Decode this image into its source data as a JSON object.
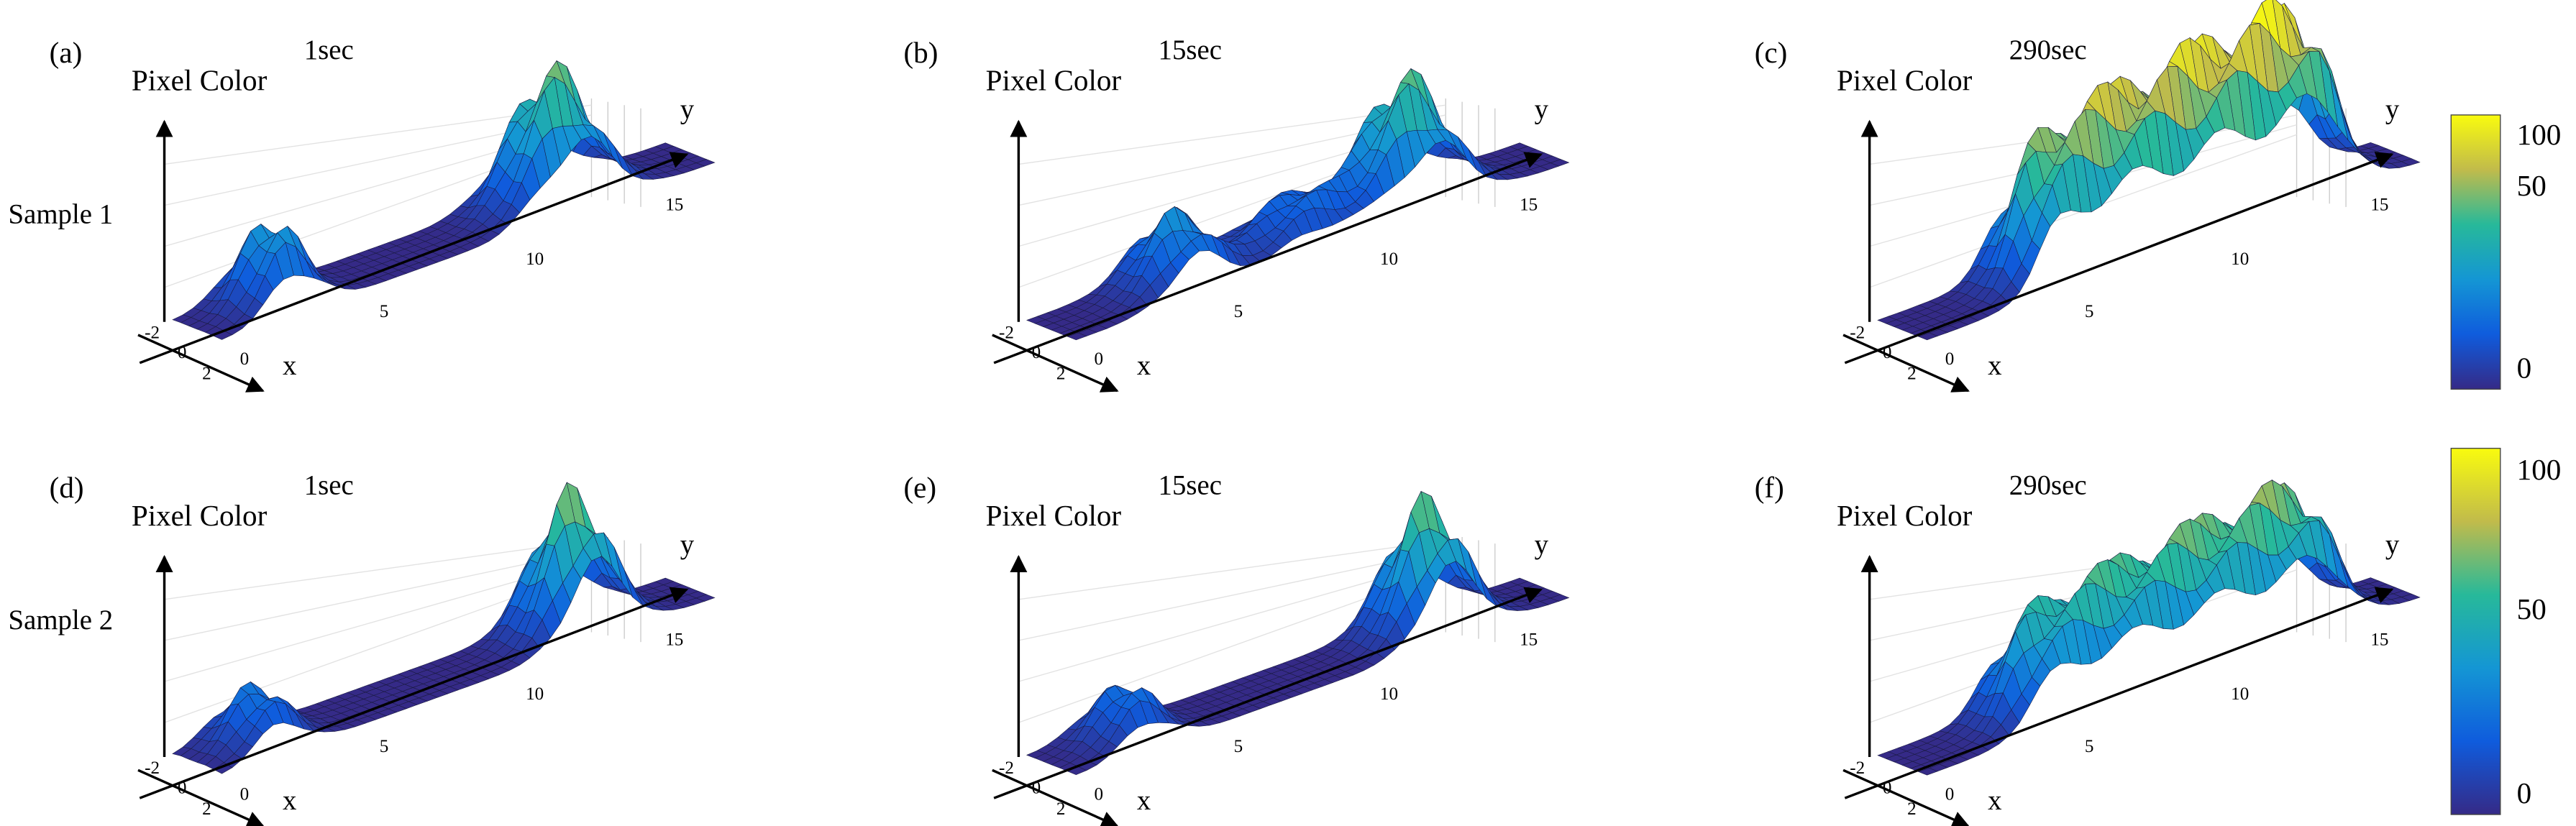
{
  "rows": [
    "Sample 1",
    "Sample 2"
  ],
  "panels": [
    {
      "label": "(a)",
      "time": "1sec",
      "z_label": "Pixel Color",
      "x_label": "x",
      "y_label": "y",
      "x_ticks": [
        -2,
        0,
        2
      ],
      "y_ticks": [
        0,
        5,
        10,
        15
      ]
    },
    {
      "label": "(b)",
      "time": "15sec",
      "z_label": "Pixel Color",
      "x_label": "x",
      "y_label": "y",
      "x_ticks": [
        -2,
        0,
        2
      ],
      "y_ticks": [
        0,
        5,
        10,
        15
      ]
    },
    {
      "label": "(c)",
      "time": "290sec",
      "z_label": "Pixel Color",
      "x_label": "x",
      "y_label": "y",
      "x_ticks": [
        -2,
        0,
        2
      ],
      "y_ticks": [
        0,
        5,
        10,
        15
      ]
    },
    {
      "label": "(d)",
      "time": "1sec",
      "z_label": "Pixel Color",
      "x_label": "x",
      "y_label": "y",
      "x_ticks": [
        -2,
        0,
        2
      ],
      "y_ticks": [
        0,
        5,
        10,
        15
      ]
    },
    {
      "label": "(e)",
      "time": "15sec",
      "z_label": "Pixel Color",
      "x_label": "x",
      "y_label": "y",
      "x_ticks": [
        -2,
        0,
        2
      ],
      "y_ticks": [
        0,
        5,
        10,
        15
      ]
    },
    {
      "label": "(f)",
      "time": "290sec",
      "z_label": "Pixel Color",
      "x_label": "x",
      "y_label": "y",
      "x_ticks": [
        -2,
        0,
        2
      ],
      "y_ticks": [
        0,
        5,
        10,
        15
      ]
    }
  ],
  "colorbars": [
    {
      "ticks": [
        100,
        50,
        0
      ]
    },
    {
      "ticks": [
        100,
        50,
        0
      ]
    }
  ]
}
